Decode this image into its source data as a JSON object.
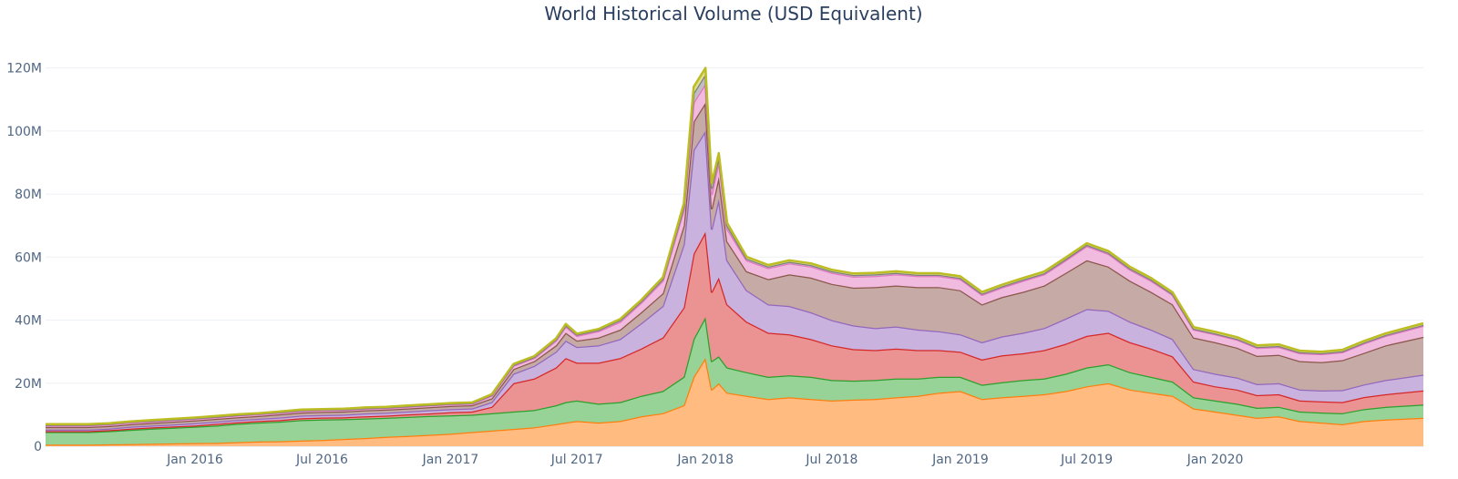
{
  "chart_data": {
    "type": "area",
    "stacked": true,
    "title": "World Historical Volume (USD Equivalent)",
    "xlabel": "",
    "ylabel": "",
    "x_range": [
      "2015-06-01",
      "2020-10-25"
    ],
    "ylim": [
      0,
      130000000
    ],
    "y_ticks": [
      0,
      20000000,
      40000000,
      60000000,
      80000000,
      100000000,
      120000000
    ],
    "y_tick_labels": [
      "0",
      "20M",
      "40M",
      "60M",
      "80M",
      "100M",
      "120M"
    ],
    "x_ticks": [
      "2016-01-01",
      "2016-07-01",
      "2017-01-01",
      "2017-07-01",
      "2018-01-01",
      "2018-07-01",
      "2019-01-01",
      "2019-07-01",
      "2020-01-01"
    ],
    "x_tick_labels": [
      "Jan 2016",
      "Jul 2016",
      "Jan 2017",
      "Jul 2017",
      "Jan 2018",
      "Jul 2018",
      "Jan 2019",
      "Jul 2019",
      "Jan 2020"
    ],
    "grid": true,
    "legend": "none",
    "x": [
      "2015-06-01",
      "2015-07-01",
      "2015-08-01",
      "2015-09-01",
      "2015-10-01",
      "2015-11-01",
      "2015-12-01",
      "2016-01-01",
      "2016-02-01",
      "2016-03-01",
      "2016-04-01",
      "2016-05-01",
      "2016-06-01",
      "2016-07-01",
      "2016-08-01",
      "2016-09-01",
      "2016-10-01",
      "2016-11-01",
      "2016-12-01",
      "2017-01-01",
      "2017-02-01",
      "2017-03-01",
      "2017-04-01",
      "2017-05-01",
      "2017-06-01",
      "2017-06-15",
      "2017-07-01",
      "2017-08-01",
      "2017-09-01",
      "2017-10-01",
      "2017-11-01",
      "2017-12-01",
      "2017-12-15",
      "2018-01-01",
      "2018-01-10",
      "2018-01-20",
      "2018-02-01",
      "2018-03-01",
      "2018-04-01",
      "2018-05-01",
      "2018-06-01",
      "2018-07-01",
      "2018-08-01",
      "2018-09-01",
      "2018-10-01",
      "2018-11-01",
      "2018-12-01",
      "2019-01-01",
      "2019-02-01",
      "2019-03-01",
      "2019-04-01",
      "2019-05-01",
      "2019-06-01",
      "2019-07-01",
      "2019-08-01",
      "2019-09-01",
      "2019-10-01",
      "2019-11-01",
      "2019-12-01",
      "2020-01-01",
      "2020-02-01",
      "2020-03-01",
      "2020-04-01",
      "2020-05-01",
      "2020-06-01",
      "2020-07-01",
      "2020-08-01",
      "2020-09-01",
      "2020-10-25"
    ],
    "series": [
      {
        "color": "#ff7f0e",
        "fill": "#ffbb80",
        "values": [
          0.5,
          0.5,
          0.5,
          0.6,
          0.7,
          0.8,
          0.9,
          1.0,
          1.1,
          1.3,
          1.5,
          1.6,
          1.8,
          2.0,
          2.3,
          2.6,
          3.0,
          3.3,
          3.6,
          4.0,
          4.5,
          5.0,
          5.5,
          6.0,
          7.0,
          7.5,
          8.0,
          7.5,
          8.0,
          9.5,
          10.5,
          13.0,
          22.0,
          28.0,
          18.0,
          20.0,
          17.0,
          16.0,
          15.0,
          15.5,
          15.0,
          14.5,
          14.8,
          15.0,
          15.5,
          16.0,
          17.0,
          17.5,
          15.0,
          15.5,
          16.0,
          16.5,
          17.5,
          19.0,
          20.0,
          18.0,
          17.0,
          16.0,
          12.0,
          11.0,
          10.0,
          9.0,
          9.5,
          8.0,
          7.5,
          7.0,
          8.0,
          8.5,
          9.0
        ]
      },
      {
        "color": "#2ca02c",
        "fill": "#97d397",
        "values": [
          4.0,
          4.0,
          4.0,
          4.2,
          4.5,
          4.8,
          5.0,
          5.2,
          5.5,
          5.8,
          6.0,
          6.2,
          6.5,
          6.5,
          6.3,
          6.2,
          6.0,
          6.0,
          6.0,
          5.8,
          5.5,
          5.5,
          5.5,
          5.5,
          6.0,
          6.5,
          6.5,
          6.0,
          6.0,
          6.5,
          7.0,
          9.0,
          12.0,
          13.0,
          9.0,
          8.5,
          8.0,
          7.5,
          7.0,
          7.0,
          7.0,
          6.5,
          6.0,
          6.0,
          6.0,
          5.5,
          5.0,
          4.5,
          4.5,
          4.8,
          5.0,
          5.0,
          5.5,
          6.0,
          6.0,
          5.5,
          5.0,
          4.5,
          3.5,
          3.5,
          3.5,
          3.2,
          3.0,
          3.0,
          3.2,
          3.5,
          3.8,
          4.0,
          4.2
        ]
      },
      {
        "color": "#d62728",
        "fill": "#eb9393",
        "values": [
          0.3,
          0.3,
          0.3,
          0.3,
          0.4,
          0.4,
          0.4,
          0.4,
          0.5,
          0.5,
          0.5,
          0.5,
          0.6,
          0.6,
          0.6,
          0.7,
          0.7,
          0.8,
          0.8,
          1.0,
          1.0,
          2.0,
          9.0,
          10.0,
          12.0,
          14.0,
          12.0,
          13.0,
          14.0,
          15.0,
          17.0,
          22.0,
          27.0,
          27.0,
          22.0,
          25.0,
          20.0,
          16.0,
          14.0,
          13.0,
          12.0,
          11.0,
          10.0,
          9.5,
          9.5,
          9.0,
          8.5,
          8.0,
          8.0,
          8.5,
          8.5,
          9.0,
          9.5,
          10.0,
          10.0,
          9.5,
          9.0,
          8.0,
          5.0,
          4.5,
          4.5,
          4.0,
          4.0,
          3.5,
          3.5,
          3.5,
          3.8,
          4.0,
          4.5
        ]
      },
      {
        "color": "#9467bd",
        "fill": "#c9b3de",
        "values": [
          0.5,
          0.5,
          0.5,
          0.5,
          0.6,
          0.6,
          0.6,
          0.7,
          0.7,
          0.7,
          0.7,
          0.8,
          0.8,
          0.8,
          0.8,
          0.9,
          0.9,
          0.9,
          1.0,
          1.0,
          1.0,
          1.5,
          3.0,
          4.0,
          5.0,
          5.5,
          5.0,
          5.5,
          6.0,
          8.0,
          10.0,
          20.0,
          33.0,
          32.0,
          20.0,
          25.0,
          14.0,
          10.0,
          9.0,
          9.0,
          8.5,
          8.0,
          7.5,
          7.0,
          7.0,
          6.5,
          6.0,
          5.5,
          5.5,
          6.0,
          6.5,
          7.0,
          8.0,
          8.5,
          7.0,
          6.5,
          6.0,
          5.5,
          4.0,
          4.0,
          3.8,
          3.5,
          3.5,
          3.5,
          3.5,
          3.8,
          4.0,
          4.5,
          5.0
        ]
      },
      {
        "color": "#8c564b",
        "fill": "#c5aaa5",
        "values": [
          0.8,
          0.8,
          0.8,
          0.8,
          0.8,
          0.8,
          0.9,
          0.9,
          0.9,
          0.9,
          0.9,
          1.0,
          1.0,
          1.0,
          1.0,
          1.0,
          1.0,
          1.0,
          1.0,
          1.0,
          1.0,
          1.2,
          1.5,
          1.5,
          2.0,
          2.5,
          2.0,
          2.5,
          3.0,
          3.5,
          4.0,
          6.0,
          9.0,
          9.0,
          6.5,
          7.0,
          6.0,
          6.0,
          8.0,
          10.0,
          11.0,
          11.5,
          12.0,
          13.0,
          13.0,
          13.5,
          14.0,
          14.0,
          12.0,
          12.5,
          13.0,
          13.5,
          14.5,
          15.5,
          14.0,
          13.0,
          12.0,
          11.0,
          10.0,
          10.0,
          9.5,
          9.0,
          9.0,
          9.0,
          9.0,
          9.5,
          10.0,
          11.0,
          12.0
        ]
      },
      {
        "color": "#e377c2",
        "fill": "#f1bbe0",
        "values": [
          0.5,
          0.5,
          0.5,
          0.5,
          0.5,
          0.5,
          0.5,
          0.5,
          0.5,
          0.5,
          0.5,
          0.5,
          0.5,
          0.5,
          0.5,
          0.5,
          0.5,
          0.5,
          0.5,
          0.5,
          0.5,
          0.8,
          1.0,
          1.0,
          1.5,
          2.0,
          1.5,
          2.0,
          2.5,
          3.0,
          4.0,
          5.0,
          6.0,
          6.0,
          4.5,
          5.0,
          4.0,
          3.5,
          3.5,
          3.5,
          3.5,
          3.5,
          3.5,
          3.5,
          3.5,
          3.5,
          3.5,
          3.5,
          3.0,
          3.0,
          3.5,
          3.5,
          4.0,
          4.5,
          4.0,
          3.5,
          3.5,
          3.0,
          2.5,
          2.5,
          2.5,
          2.5,
          2.5,
          2.5,
          2.5,
          2.5,
          3.0,
          3.0,
          3.5
        ]
      },
      {
        "color": "#7f7f7f",
        "fill": "#bfbfbf",
        "values": [
          0.2,
          0.2,
          0.2,
          0.2,
          0.2,
          0.2,
          0.2,
          0.2,
          0.2,
          0.2,
          0.2,
          0.2,
          0.2,
          0.2,
          0.2,
          0.2,
          0.2,
          0.2,
          0.2,
          0.2,
          0.2,
          0.3,
          0.3,
          0.3,
          0.4,
          0.4,
          0.4,
          0.4,
          0.5,
          0.5,
          0.6,
          1.0,
          3.0,
          3.0,
          2.0,
          1.5,
          1.0,
          0.5,
          0.5,
          0.5,
          0.5,
          0.5,
          0.5,
          0.5,
          0.5,
          0.4,
          0.4,
          0.4,
          0.4,
          0.4,
          0.4,
          0.4,
          0.4,
          0.4,
          0.4,
          0.4,
          0.4,
          0.3,
          0.3,
          0.3,
          0.3,
          0.3,
          0.3,
          0.3,
          0.3,
          0.3,
          0.3,
          0.3,
          0.3
        ]
      },
      {
        "color": "#bcbd22",
        "fill": "#dedf91",
        "values": [
          0.2,
          0.2,
          0.2,
          0.2,
          0.2,
          0.2,
          0.2,
          0.2,
          0.2,
          0.2,
          0.2,
          0.2,
          0.2,
          0.2,
          0.2,
          0.2,
          0.2,
          0.2,
          0.2,
          0.2,
          0.2,
          0.2,
          0.3,
          0.3,
          0.3,
          0.4,
          0.3,
          0.3,
          0.4,
          0.4,
          0.5,
          1.0,
          2.0,
          2.0,
          1.5,
          1.0,
          0.8,
          0.6,
          0.5,
          0.5,
          0.5,
          0.5,
          0.5,
          0.5,
          0.5,
          0.5,
          0.5,
          0.5,
          0.5,
          0.5,
          0.5,
          0.5,
          0.5,
          0.5,
          0.5,
          0.5,
          0.5,
          0.5,
          0.5,
          0.5,
          0.5,
          0.5,
          0.5,
          0.5,
          0.5,
          0.5,
          0.5,
          0.5,
          0.5
        ]
      }
    ],
    "value_unit_multiplier": 1000000
  }
}
